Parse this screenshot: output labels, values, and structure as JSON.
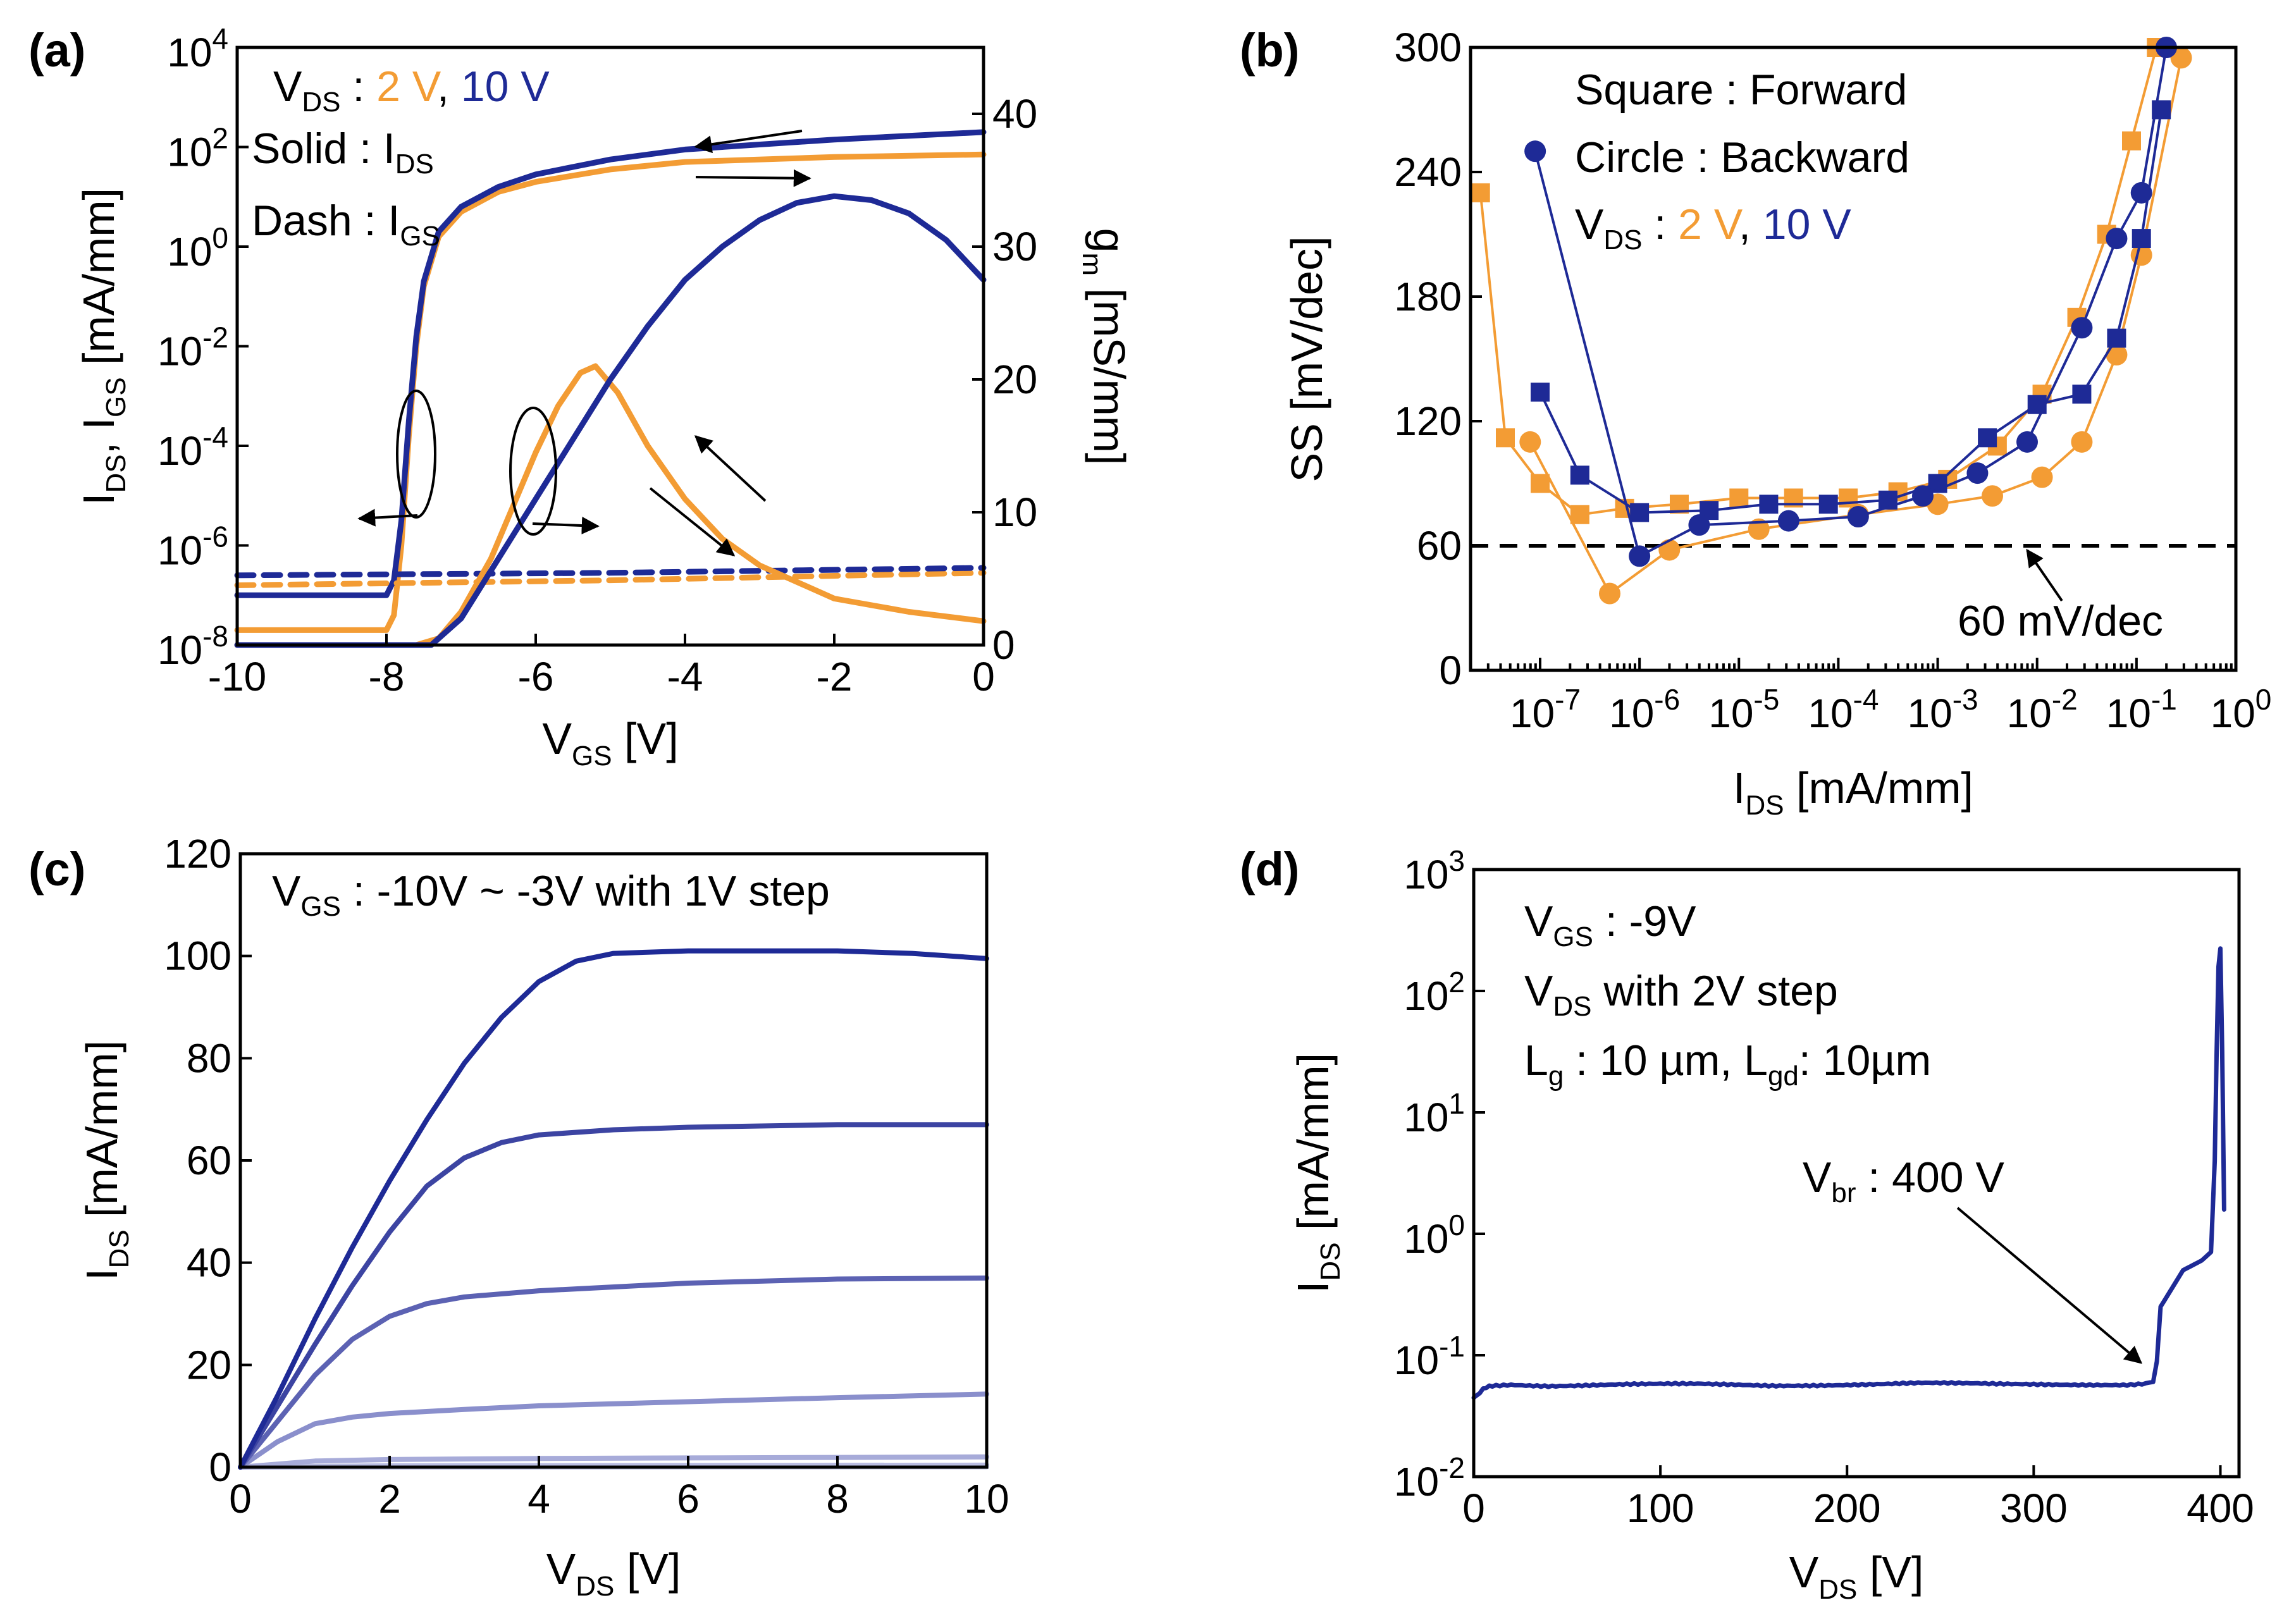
{
  "colors": {
    "orange": "#F39C34",
    "blue": "#1E2A96",
    "axis": "#000000"
  },
  "chart_data": [
    {
      "panel": "(a)",
      "type": "line",
      "xlabel_main": "V",
      "xlabel_sub": "GS",
      "xlabel_unit": " [V]",
      "xlim": [
        -10,
        0
      ],
      "xticks": [
        "-10",
        "-8",
        "-6",
        "-4",
        "-2",
        "0"
      ],
      "ylabel": "I_DS, I_GS [mA/mm]",
      "ylabel_parts": {
        "a": "I",
        "a_sub": "DS",
        "b": ", I",
        "b_sub": "GS",
        "c": " [mA/mm]"
      },
      "yscale": "log",
      "ylim_exp": [
        -8,
        4
      ],
      "yticks": [
        {
          "base": "10",
          "exp": "4"
        },
        {
          "base": "10",
          "exp": "2"
        },
        {
          "base": "10",
          "exp": "0"
        },
        {
          "base": "10",
          "exp": "-2"
        },
        {
          "base": "10",
          "exp": "-4"
        },
        {
          "base": "10",
          "exp": "-6"
        },
        {
          "base": "10",
          "exp": "-8"
        }
      ],
      "y2label": "g_m [mS/mm]",
      "y2label_parts": {
        "a": "g",
        "a_sub": "m",
        "b": " [mS/mm]"
      },
      "y2lim": [
        0,
        45
      ],
      "y2ticks": [
        "0",
        "10",
        "20",
        "30",
        "40"
      ],
      "annotations": {
        "vds_prefix": "V",
        "vds_sub": "DS",
        "vds_colon": " : ",
        "vds_2v": "2 V",
        "vds_comma": ", ",
        "vds_10v": "10 V",
        "solid_label": "Solid : I",
        "solid_sub": "DS",
        "dash_label": "Dash : I",
        "dash_sub": "GS"
      },
      "series": [
        {
          "name": "I_DS (2 V)",
          "axis": "left",
          "style": "solid",
          "color": "orange",
          "x": [
            -10,
            -8.5,
            -8,
            -7.9,
            -7.8,
            -7.7,
            -7.6,
            -7.5,
            -7.3,
            -7.0,
            -6.5,
            -6.0,
            -5.0,
            -4.0,
            -2.0,
            0
          ],
          "y_exp": [
            -7.7,
            -7.7,
            -7.7,
            -7.4,
            -6.0,
            -3.8,
            -2.0,
            -0.8,
            0.2,
            0.7,
            1.1,
            1.3,
            1.55,
            1.7,
            1.8,
            1.85
          ]
        },
        {
          "name": "I_DS (10 V)",
          "axis": "left",
          "style": "solid",
          "color": "blue",
          "x": [
            -10,
            -8.5,
            -8,
            -7.9,
            -7.8,
            -7.7,
            -7.6,
            -7.5,
            -7.3,
            -7.0,
            -6.5,
            -6.0,
            -5.0,
            -4.0,
            -2.0,
            0
          ],
          "y_exp": [
            -7.0,
            -7.0,
            -7.0,
            -6.7,
            -5.5,
            -3.5,
            -1.8,
            -0.7,
            0.3,
            0.8,
            1.2,
            1.45,
            1.75,
            1.95,
            2.15,
            2.3
          ]
        },
        {
          "name": "I_GS (2 V)",
          "axis": "left",
          "style": "dash",
          "color": "orange",
          "x": [
            -10,
            -5,
            0
          ],
          "y_exp": [
            -6.8,
            -6.7,
            -6.55
          ]
        },
        {
          "name": "I_GS (10 V)",
          "axis": "left",
          "style": "dash",
          "color": "blue",
          "x": [
            -10,
            -5,
            0
          ],
          "y_exp": [
            -6.6,
            -6.55,
            -6.45
          ]
        },
        {
          "name": "g_m (2 V)",
          "axis": "right",
          "style": "solid",
          "color": "orange",
          "x": [
            -10,
            -7.6,
            -7.3,
            -7.0,
            -6.6,
            -6.3,
            -6.0,
            -5.7,
            -5.4,
            -5.2,
            -4.9,
            -4.5,
            -4.0,
            -3.5,
            -3.0,
            -2.0,
            -1.0,
            0
          ],
          "y": [
            0,
            0,
            0.5,
            2.5,
            6.5,
            10.5,
            14.5,
            18,
            20.5,
            21,
            19,
            15,
            11,
            8,
            6,
            3.5,
            2.5,
            1.8
          ]
        },
        {
          "name": "g_m (10 V)",
          "axis": "right",
          "style": "solid",
          "color": "blue",
          "x": [
            -10,
            -7.4,
            -7.0,
            -6.5,
            -6.0,
            -5.5,
            -5.0,
            -4.5,
            -4.0,
            -3.5,
            -3.0,
            -2.5,
            -2.0,
            -1.5,
            -1.0,
            -0.5,
            0
          ],
          "y": [
            0,
            0,
            2,
            6.5,
            11,
            15.5,
            20,
            24,
            27.5,
            30,
            32,
            33.3,
            33.8,
            33.5,
            32.5,
            30.5,
            27.5
          ]
        }
      ]
    },
    {
      "panel": "(b)",
      "type": "scatter",
      "xlabel_main": "I",
      "xlabel_sub": "DS",
      "xlabel_unit": " [mA/mm]",
      "xscale": "log",
      "xlim_exp": [
        -7.7,
        0
      ],
      "xticks": [
        {
          "base": "10",
          "exp": "-7"
        },
        {
          "base": "10",
          "exp": "-6"
        },
        {
          "base": "10",
          "exp": "-5"
        },
        {
          "base": "10",
          "exp": "-4"
        },
        {
          "base": "10",
          "exp": "-3"
        },
        {
          "base": "10",
          "exp": "-2"
        },
        {
          "base": "10",
          "exp": "-1"
        },
        {
          "base": "10",
          "exp": "0"
        }
      ],
      "ylabel": "SS [mV/dec]",
      "ylim": [
        0,
        300
      ],
      "yticks": [
        "0",
        "60",
        "120",
        "180",
        "240",
        "300"
      ],
      "reference_line": {
        "y": 60,
        "label": "60 mV/dec"
      },
      "annotations": {
        "square": "Square : Forward",
        "circle": "Circle   : Backward",
        "vds_prefix": "V",
        "vds_sub": "DS",
        "vds_colon": " : ",
        "vds_2v": "2 V",
        "vds_comma": ", ",
        "vds_10v": "10 V"
      },
      "series": [
        {
          "name": "Forward 2 V",
          "marker": "square",
          "color": "orange",
          "x_exp": [
            -7.6,
            -7.35,
            -7.0,
            -6.6,
            -6.15,
            -5.6,
            -5.0,
            -4.45,
            -3.9,
            -3.4,
            -2.9,
            -2.4,
            -1.95,
            -1.6,
            -1.3,
            -1.05,
            -0.8
          ],
          "y": [
            230,
            112,
            90,
            75,
            78,
            80,
            83,
            83,
            83,
            86,
            92,
            108,
            133,
            170,
            210,
            255,
            300
          ]
        },
        {
          "name": "Backward 2 V",
          "marker": "circle",
          "color": "orange",
          "x_exp": [
            -7.1,
            -6.3,
            -5.7,
            -4.8,
            -3.8,
            -3.0,
            -2.45,
            -1.95,
            -1.55,
            -1.2,
            -0.95,
            -0.55
          ],
          "y": [
            110,
            37,
            58,
            68,
            75,
            80,
            84,
            93,
            110,
            152,
            200,
            295
          ]
        },
        {
          "name": "Forward 10 V",
          "marker": "square",
          "color": "blue",
          "x_exp": [
            -7.0,
            -6.6,
            -6.0,
            -5.3,
            -4.7,
            -4.1,
            -3.5,
            -3.0,
            -2.5,
            -2.0,
            -1.55,
            -1.2,
            -0.95,
            -0.75
          ],
          "y": [
            134,
            94,
            76,
            77,
            80,
            80,
            82,
            90,
            112,
            128,
            133,
            160,
            208,
            270
          ]
        },
        {
          "name": "Backward 10 V",
          "marker": "circle",
          "color": "blue",
          "x_exp": [
            -7.05,
            -6.0,
            -5.4,
            -4.5,
            -3.8,
            -3.15,
            -2.6,
            -2.1,
            -1.55,
            -1.2,
            -0.95,
            -0.7
          ],
          "y": [
            250,
            55,
            70,
            72,
            74,
            84,
            95,
            110,
            165,
            208,
            230,
            300
          ]
        }
      ]
    },
    {
      "panel": "(c)",
      "type": "line",
      "xlabel_main": "V",
      "xlabel_sub": "DS",
      "xlabel_unit": " [V]",
      "xlim": [
        0,
        10
      ],
      "xticks": [
        "0",
        "2",
        "4",
        "6",
        "8",
        "10"
      ],
      "ylabel_parts": {
        "a": "I",
        "a_sub": "DS",
        "b": " [mA/mm]"
      },
      "ylim": [
        0,
        120
      ],
      "yticks": [
        "0",
        "20",
        "40",
        "60",
        "80",
        "100",
        "120"
      ],
      "annotation": {
        "prefix": "V",
        "sub": "GS",
        "text": " : -10V ~ -3V with 1V step"
      },
      "series": [
        {
          "name": "VGS -3V",
          "color": "#1E2A96",
          "x": [
            0,
            0.5,
            1,
            1.5,
            2,
            2.5,
            3,
            3.5,
            4,
            4.5,
            5,
            6,
            7,
            8,
            9,
            10
          ],
          "y": [
            0,
            14,
            29,
            43,
            56,
            68,
            79,
            88,
            95,
            99,
            100.5,
            101,
            101,
            101,
            100.5,
            99.5
          ]
        },
        {
          "name": "VGS -4V",
          "color": "#3C44A2",
          "x": [
            0,
            0.5,
            1,
            1.5,
            2,
            2.5,
            3,
            3.5,
            4,
            5,
            6,
            8,
            10
          ],
          "y": [
            0,
            12,
            24,
            35.5,
            46,
            55,
            60.5,
            63.5,
            65,
            66,
            66.5,
            67,
            67
          ]
        },
        {
          "name": "VGS -5V",
          "color": "#5C62B3",
          "x": [
            0,
            0.5,
            1,
            1.5,
            2,
            2.5,
            3,
            4,
            6,
            8,
            10
          ],
          "y": [
            0,
            9,
            18,
            25,
            29.5,
            32,
            33.3,
            34.5,
            36,
            36.8,
            37
          ]
        },
        {
          "name": "VGS -6V",
          "color": "#8A8FCC",
          "x": [
            0,
            0.5,
            1,
            1.5,
            2,
            3,
            4,
            6,
            8,
            10
          ],
          "y": [
            0,
            5,
            8.5,
            9.8,
            10.5,
            11.3,
            12,
            12.8,
            13.6,
            14.3
          ]
        },
        {
          "name": "VGS -7V",
          "color": "#A7ABD9",
          "x": [
            0,
            1,
            2,
            4,
            6,
            8,
            10
          ],
          "y": [
            0,
            1.2,
            1.5,
            1.7,
            1.8,
            1.9,
            2.0
          ]
        },
        {
          "name": "VGS -8V",
          "color": "#B9BCE2",
          "x": [
            0,
            2,
            10
          ],
          "y": [
            0,
            0.3,
            0.4
          ]
        },
        {
          "name": "VGS -9V",
          "color": "#C8CAE8",
          "x": [
            0,
            10
          ],
          "y": [
            0,
            0.1
          ]
        },
        {
          "name": "VGS -10V",
          "color": "#D6D8EE",
          "x": [
            0,
            10
          ],
          "y": [
            0,
            0.05
          ]
        }
      ]
    },
    {
      "panel": "(d)",
      "type": "line",
      "xlabel_main": "V",
      "xlabel_sub": "DS",
      "xlabel_unit": " [V]",
      "xlim": [
        0,
        410
      ],
      "xticks": [
        "0",
        "100",
        "200",
        "300",
        "400"
      ],
      "ylabel_parts": {
        "a": "I",
        "a_sub": "DS",
        "b": " [mA/mm]"
      },
      "yscale": "log",
      "ylim_exp": [
        -2,
        3
      ],
      "yticks": [
        {
          "base": "10",
          "exp": "3"
        },
        {
          "base": "10",
          "exp": "2"
        },
        {
          "base": "10",
          "exp": "1"
        },
        {
          "base": "10",
          "exp": "0"
        },
        {
          "base": "10",
          "exp": "-1"
        },
        {
          "base": "10",
          "exp": "-2"
        }
      ],
      "annotations": {
        "line1_prefix": "V",
        "line1_sub": "GS",
        "line1_text": " : -9V",
        "line2_prefix": "V",
        "line2_sub": "DS",
        "line2_text": " with 2V step",
        "line3_a": "L",
        "line3_a_sub": "g",
        "line3_b": " : 10 µm, L",
        "line3_b_sub": "gd",
        "line3_c": ": 10µm",
        "vbr_prefix": "V",
        "vbr_sub": "br",
        "vbr_text": " : 400 V",
        "vbr_arrow_target_x": 364,
        "vbr_arrow_target_y_exp": -1.2
      },
      "series": [
        {
          "name": "I_DS",
          "color": "blue",
          "x": [
            0,
            5,
            10,
            20,
            40,
            80,
            120,
            160,
            200,
            240,
            280,
            320,
            350,
            360,
            364,
            366,
            368,
            372,
            380,
            390,
            395,
            397,
            398,
            399,
            400,
            401,
            402
          ],
          "y_exp": [
            -1.35,
            -1.28,
            -1.25,
            -1.24,
            -1.25,
            -1.24,
            -1.24,
            -1.25,
            -1.24,
            -1.23,
            -1.24,
            -1.24,
            -1.24,
            -1.23,
            -1.22,
            -1.05,
            -0.6,
            -0.5,
            -0.3,
            -0.22,
            -0.15,
            0.6,
            1.5,
            2.2,
            2.35,
            1.5,
            0.2
          ]
        }
      ]
    }
  ]
}
